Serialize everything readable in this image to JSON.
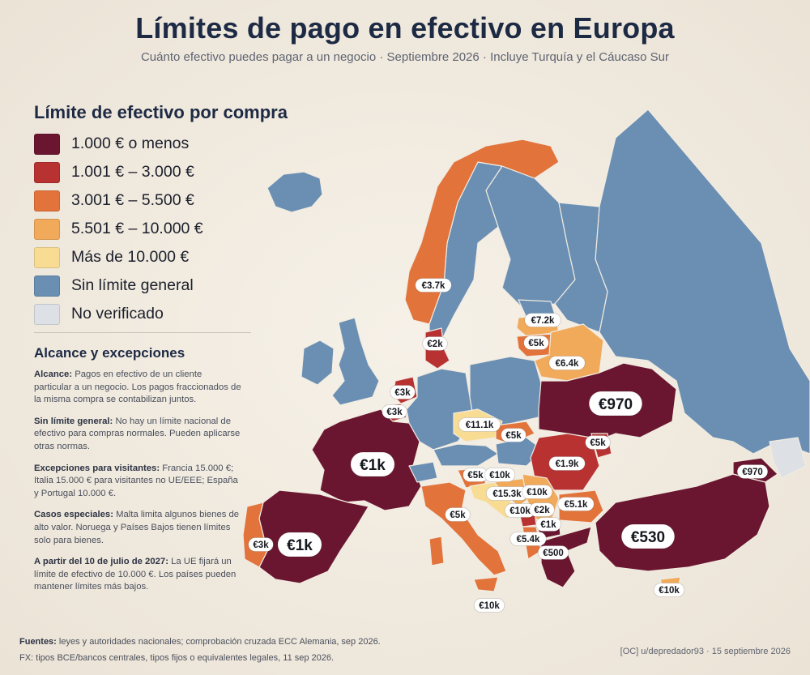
{
  "title": "Límites de pago en efectivo en Europa",
  "subtitle": "Cuánto efectivo puedes pagar a un negocio · Septiembre 2026 · Incluye Turquía y el Cáucaso Sur",
  "legend": {
    "title": "Límite de efectivo por compra",
    "items": [
      {
        "label": "1.000 € o menos",
        "color": "#6b1630"
      },
      {
        "label": "1.001 € – 3.000 €",
        "color": "#b83232"
      },
      {
        "label": "3.001 € – 5.500 €",
        "color": "#e2733a"
      },
      {
        "label": "5.501 € – 10.000 €",
        "color": "#f1a95a"
      },
      {
        "label": "Más de 10.000 €",
        "color": "#f8dc94"
      },
      {
        "label": "Sin límite general",
        "color": "#6a8fb3"
      },
      {
        "label": "No verificado",
        "color": "#dde1e6"
      }
    ]
  },
  "scope": {
    "title": "Alcance y excepciones",
    "notes": [
      {
        "head": "Alcance:",
        "text": " Pagos en efectivo de un cliente particular a un negocio. Los pagos fraccionados de la misma compra se contabilizan juntos."
      },
      {
        "head": "Sin límite general:",
        "text": " No hay un límite nacional de efectivo para compras normales. Pueden aplicarse otras normas."
      },
      {
        "head": "Excepciones para visitantes:",
        "text": " Francia 15.000 €; Italia 15.000 € para visitantes no UE/EEE; España y Portugal 10.000 €."
      },
      {
        "head": "Casos especiales:",
        "text": " Malta limita algunos bienes de alto valor. Noruega y Países Bajos tienen límites solo para bienes."
      },
      {
        "head": "A partir del 10 de julio de 2027:",
        "text": " La UE fijará un límite de efectivo de 10.000 €. Los países pueden mantener límites más bajos."
      }
    ]
  },
  "map_labels": [
    {
      "id": "spain",
      "text": "€1k",
      "big": true
    },
    {
      "id": "france",
      "text": "€1k",
      "big": true
    },
    {
      "id": "ukraine",
      "text": "€970",
      "big": true
    },
    {
      "id": "turkey",
      "text": "€530",
      "big": true
    },
    {
      "id": "norway",
      "text": "€3.7k",
      "big": false
    },
    {
      "id": "denmark",
      "text": "€2k",
      "big": false
    },
    {
      "id": "netherlands",
      "text": "€3k",
      "big": false
    },
    {
      "id": "belgium",
      "text": "€3k",
      "big": false
    },
    {
      "id": "portugal",
      "text": "€3k",
      "big": false
    },
    {
      "id": "latvia",
      "text": "€7.2k",
      "big": false
    },
    {
      "id": "lithuania",
      "text": "€5k",
      "big": false
    },
    {
      "id": "belarus",
      "text": "€6.4k",
      "big": false
    },
    {
      "id": "czechia",
      "text": "€11.1k",
      "big": false
    },
    {
      "id": "slovakia",
      "text": "€5k",
      "big": false
    },
    {
      "id": "moldova",
      "text": "€5k",
      "big": false
    },
    {
      "id": "romania",
      "text": "€1.9k",
      "big": false
    },
    {
      "id": "slovenia",
      "text": "€5k",
      "big": false
    },
    {
      "id": "hungary_s",
      "text": "€10k",
      "big": false
    },
    {
      "id": "croatia",
      "text": "€15.3k",
      "big": false
    },
    {
      "id": "serbia",
      "text": "€10k",
      "big": false
    },
    {
      "id": "bosnia",
      "text": "€10k",
      "big": false
    },
    {
      "id": "montenegro",
      "text": "€2k",
      "big": false
    },
    {
      "id": "bulgaria",
      "text": "€5.1k",
      "big": false
    },
    {
      "id": "italy",
      "text": "€5k",
      "big": false
    },
    {
      "id": "albania",
      "text": "€5.4k",
      "big": false
    },
    {
      "id": "macedonia",
      "text": "€1k",
      "big": false
    },
    {
      "id": "greece",
      "text": "€500",
      "big": false
    },
    {
      "id": "georgia",
      "text": "€970",
      "big": false
    },
    {
      "id": "malta",
      "text": "€10k",
      "big": false
    },
    {
      "id": "cyprus",
      "text": "€10k",
      "big": false
    }
  ],
  "footer": {
    "sources_head": "Fuentes:",
    "sources_text": " leyes y autoridades nacionales; comprobación cruzada ECC Alemania, sep 2026.",
    "fx": "FX: tipos BCE/bancos centrales, tipos fijos o equivalentes legales, 11 sep 2026.",
    "credit": "[OC] u/depredador93 · 15 septiembre 2026"
  }
}
